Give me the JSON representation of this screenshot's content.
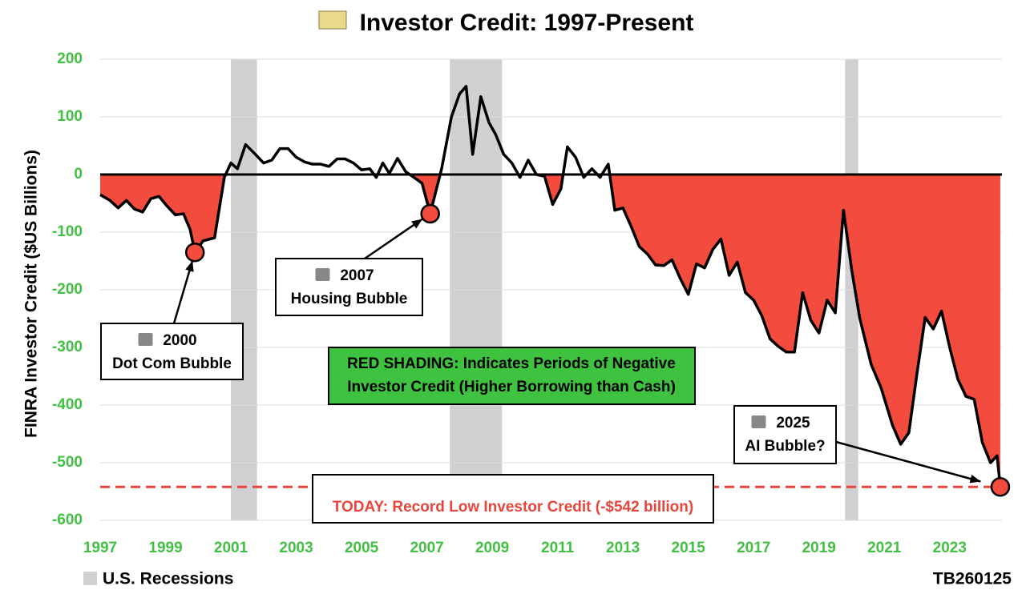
{
  "chart_data": {
    "type": "line",
    "title": "Investor Credit: 1997-Present",
    "y_label": "FINRA Investor Credit ($US Billions)",
    "x": [
      1997.0,
      1997.3,
      1997.55,
      1997.8,
      1998.05,
      1998.3,
      1998.55,
      1998.8,
      1999.05,
      1999.3,
      1999.55,
      1999.75,
      1999.9,
      2000.15,
      2000.35,
      2000.5,
      2000.8,
      2001.0,
      2001.2,
      2001.45,
      2001.75,
      2002.0,
      2002.25,
      2002.5,
      2002.75,
      2003.0,
      2003.25,
      2003.5,
      2003.75,
      2004.0,
      2004.25,
      2004.5,
      2004.75,
      2005.0,
      2005.25,
      2005.45,
      2005.65,
      2005.85,
      2006.1,
      2006.35,
      2006.6,
      2006.85,
      2007.1,
      2007.45,
      2007.75,
      2008.0,
      2008.2,
      2008.4,
      2008.65,
      2008.9,
      2009.1,
      2009.35,
      2009.6,
      2009.85,
      2010.1,
      2010.35,
      2010.6,
      2010.85,
      2011.1,
      2011.3,
      2011.55,
      2011.8,
      2012.05,
      2012.3,
      2012.55,
      2012.75,
      2013.0,
      2013.25,
      2013.5,
      2013.75,
      2014.0,
      2014.25,
      2014.5,
      2014.75,
      2015.0,
      2015.25,
      2015.5,
      2015.75,
      2016.0,
      2016.25,
      2016.5,
      2016.75,
      2017.0,
      2017.25,
      2017.5,
      2017.75,
      2018.0,
      2018.25,
      2018.5,
      2018.75,
      2019.0,
      2019.25,
      2019.5,
      2019.75,
      2020.0,
      2020.25,
      2020.6,
      2020.9,
      2021.25,
      2021.5,
      2021.75,
      2022.0,
      2022.25,
      2022.5,
      2022.75,
      2023.0,
      2023.25,
      2023.5,
      2023.75,
      2024.0,
      2024.25,
      2024.45,
      2024.55
    ],
    "values": [
      -35,
      -45,
      -58,
      -45,
      -60,
      -65,
      -42,
      -38,
      -55,
      -70,
      -68,
      -95,
      -135,
      -115,
      -112,
      -110,
      -5,
      20,
      10,
      52,
      35,
      20,
      25,
      45,
      45,
      30,
      22,
      18,
      18,
      14,
      27,
      27,
      20,
      8,
      10,
      -5,
      20,
      2,
      28,
      5,
      -5,
      -15,
      -68,
      10,
      100,
      140,
      153,
      35,
      135,
      90,
      70,
      35,
      20,
      -5,
      25,
      0,
      -3,
      -52,
      -25,
      48,
      30,
      -5,
      10,
      -5,
      18,
      -62,
      -58,
      -90,
      -125,
      -138,
      -157,
      -158,
      -148,
      -180,
      -208,
      -155,
      -162,
      -130,
      -112,
      -175,
      -152,
      -205,
      -218,
      -245,
      -285,
      -298,
      -308,
      -308,
      -205,
      -253,
      -275,
      -218,
      -240,
      -62,
      -165,
      -250,
      -330,
      -370,
      -435,
      -468,
      -448,
      -345,
      -248,
      -268,
      -237,
      -300,
      -355,
      -385,
      -390,
      -465,
      -500,
      -488,
      -542
    ],
    "color": "#000000",
    "negative_fill": "#f44b3f",
    "xlim": [
      1997,
      2024.6
    ],
    "ylim": [
      -600,
      200
    ],
    "xticks": [
      1997,
      1999,
      2001,
      2003,
      2005,
      2007,
      2009,
      2011,
      2013,
      2015,
      2017,
      2019,
      2021,
      2023
    ],
    "yticks": [
      -600,
      -500,
      -400,
      -300,
      -200,
      -100,
      0,
      100,
      200
    ],
    "grid": true,
    "recessions": [
      [
        2001.0,
        2001.8
      ],
      [
        2007.7,
        2009.3
      ],
      [
        2019.8,
        2020.2
      ]
    ],
    "recession_color": "#d0d0d3",
    "recession_label": "U.S. Recessions",
    "reference_line": {
      "value": -542,
      "color": "#e8463c",
      "label": "TODAY: Record Low Investor Credit (-$542 billion)"
    },
    "annotations": [
      {
        "lines": [
          "2000",
          "Dot Com Bubble"
        ],
        "x": 1999.9,
        "y": -135
      },
      {
        "lines": [
          "2007",
          "Housing Bubble"
        ],
        "x": 2007.1,
        "y": -68
      },
      {
        "lines": [
          "2025",
          "AI Bubble?"
        ],
        "x": 2024.55,
        "y": -542
      }
    ],
    "note": [
      "RED SHADING: Indicates Periods of Negative",
      "Investor Credit (Higher Borrowing than Cash)"
    ],
    "source": "TB260125"
  }
}
